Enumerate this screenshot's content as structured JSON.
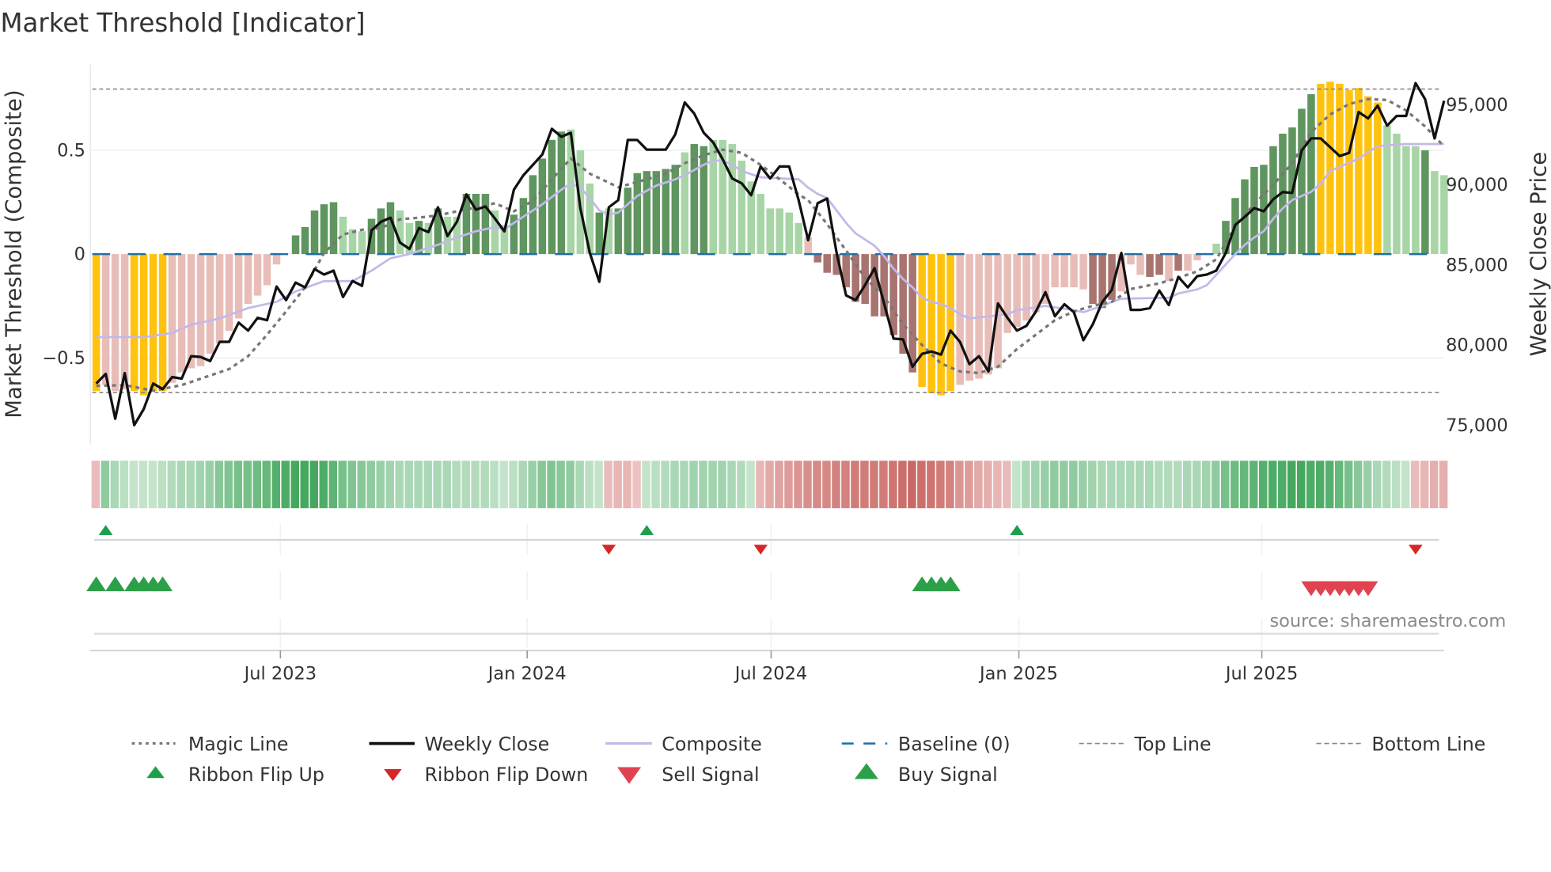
{
  "chart_data": {
    "type": "bar",
    "title": "Market Threshold [Indicator]",
    "ylabel_left": "Market Threshold (Composite)",
    "ylabel_right": "Weekly Close Price",
    "source": "source: sharemaestro.com",
    "ylim_left": [
      -0.95,
      0.92
    ],
    "ylim_right": [
      73500,
      98000
    ],
    "left_ticks": [
      {
        "v": 0.5,
        "label": "0.5"
      },
      {
        "v": 0,
        "label": "0"
      },
      {
        "v": -0.5,
        "label": "−0.5"
      }
    ],
    "right_ticks": [
      {
        "v": 95000,
        "label": "95,000"
      },
      {
        "v": 90000,
        "label": "90,000"
      },
      {
        "v": 85000,
        "label": "85,000"
      },
      {
        "v": 80000,
        "label": "80,000"
      },
      {
        "v": 75000,
        "label": "75,000"
      }
    ],
    "x_ticks": [
      {
        "i": 19.4,
        "label": "Jul 2023"
      },
      {
        "i": 45.4,
        "label": "Jan 2024"
      },
      {
        "i": 71.1,
        "label": "Jul 2024"
      },
      {
        "i": 97.2,
        "label": "Jan 2025"
      },
      {
        "i": 122.8,
        "label": "Jul 2025"
      }
    ],
    "top_line": 0.795,
    "bottom_line": -0.667,
    "baseline": 0,
    "bar_colors": {
      "Y": "#FFC20E",
      "P": "#E8BDB8",
      "B": "#A87470",
      "G": "#5F955F",
      "L": "#A8D5A6"
    },
    "composite_bars": [
      -0.66,
      -0.63,
      -0.66,
      -0.65,
      -0.66,
      -0.68,
      -0.66,
      -0.66,
      -0.62,
      -0.57,
      -0.55,
      -0.54,
      -0.48,
      -0.43,
      -0.37,
      -0.31,
      -0.24,
      -0.2,
      -0.15,
      -0.05,
      0.003,
      0.09,
      0.13,
      0.21,
      0.24,
      0.25,
      0.18,
      0.12,
      0.11,
      0.17,
      0.22,
      0.25,
      0.21,
      0.15,
      0.16,
      0.15,
      0.22,
      0.18,
      0.18,
      0.29,
      0.29,
      0.29,
      0.21,
      0.14,
      0.19,
      0.27,
      0.38,
      0.46,
      0.55,
      0.59,
      0.6,
      0.5,
      0.34,
      0.2,
      0.22,
      0.22,
      0.32,
      0.39,
      0.4,
      0.4,
      0.41,
      0.43,
      0.49,
      0.53,
      0.52,
      0.55,
      0.55,
      0.53,
      0.45,
      0.35,
      0.29,
      0.22,
      0.22,
      0.2,
      0.15,
      0.08,
      -0.04,
      -0.09,
      -0.1,
      -0.16,
      -0.23,
      -0.24,
      -0.3,
      -0.3,
      -0.39,
      -0.48,
      -0.57,
      -0.64,
      -0.67,
      -0.68,
      -0.66,
      -0.63,
      -0.61,
      -0.6,
      -0.58,
      -0.55,
      -0.38,
      -0.35,
      -0.32,
      -0.28,
      -0.24,
      -0.16,
      -0.16,
      -0.16,
      -0.17,
      -0.24,
      -0.26,
      -0.22,
      -0.18,
      -0.05,
      -0.1,
      -0.11,
      -0.1,
      -0.13,
      -0.08,
      -0.08,
      -0.03,
      0.004,
      0.05,
      0.16,
      0.27,
      0.36,
      0.42,
      0.43,
      0.52,
      0.58,
      0.61,
      0.7,
      0.77,
      0.82,
      0.83,
      0.82,
      0.79,
      0.8,
      0.76,
      0.73,
      0.62,
      0.58,
      0.52,
      0.52,
      0.5,
      0.4,
      0.38
    ],
    "bar_states": "YPPPYYYYPPPPPPPPPPPPLGGGGGLLLGGGLLGLGLLGGGLLGGGGGGLLLGLGGGGGGGLGGLLLLLLLLLLPBBBBBBBBBBBYYYYPPPPPPPPPPPPPPBBBPPPBBPBPPPLGGGGGGGGGGYYYYYYYLLLLGLL",
    "weekly_close": [
      77600,
      78200,
      75400,
      78250,
      75000,
      76000,
      77600,
      77250,
      78000,
      77900,
      79300,
      79250,
      79000,
      80200,
      80200,
      81400,
      80900,
      81700,
      81550,
      83650,
      82800,
      83900,
      83600,
      84750,
      84400,
      84650,
      83000,
      84000,
      83700,
      87150,
      87700,
      87950,
      86400,
      86000,
      87300,
      87050,
      88600,
      86800,
      87700,
      89400,
      88450,
      88650,
      87900,
      87100,
      89700,
      90600,
      91250,
      91900,
      93500,
      93000,
      93250,
      88550,
      85750,
      83950,
      88600,
      89050,
      92800,
      92800,
      92200,
      92200,
      92200,
      93150,
      95150,
      94450,
      93250,
      92650,
      91600,
      90400,
      90100,
      89350,
      91150,
      90400,
      91150,
      91150,
      89050,
      86550,
      88850,
      89150,
      85750,
      83100,
      82800,
      83750,
      84800,
      82600,
      80400,
      80350,
      78650,
      79450,
      79600,
      79400,
      80900,
      80200,
      78800,
      79300,
      78350,
      82600,
      81700,
      80900,
      81200,
      82100,
      83300,
      81800,
      82550,
      82050,
      80300,
      81300,
      82700,
      83450,
      85750,
      82200,
      82200,
      82300,
      83400,
      82500,
      84250,
      83600,
      84300,
      84400,
      84650,
      85750,
      87500,
      88000,
      88550,
      88350,
      89100,
      89550,
      89500,
      92150,
      92900,
      92900,
      92350,
      91800,
      92000,
      94550,
      94150,
      94950,
      93700,
      94300,
      94300,
      96350,
      95350,
      92900,
      95250
    ],
    "composite_line": [
      [
        0,
        -0.4
      ],
      [
        5,
        -0.4
      ],
      [
        8,
        -0.38
      ],
      [
        10,
        -0.34
      ],
      [
        13,
        -0.31
      ],
      [
        16,
        -0.26
      ],
      [
        19,
        -0.23
      ],
      [
        21,
        -0.18
      ],
      [
        24,
        -0.13
      ],
      [
        27,
        -0.13
      ],
      [
        29,
        -0.08
      ],
      [
        31,
        -0.02
      ],
      [
        33,
        0.0
      ],
      [
        36,
        0.045
      ],
      [
        38,
        0.08
      ],
      [
        40,
        0.11
      ],
      [
        42,
        0.13
      ],
      [
        43,
        0.12
      ],
      [
        45,
        0.18
      ],
      [
        47,
        0.24
      ],
      [
        49,
        0.31
      ],
      [
        50,
        0.34
      ],
      [
        51,
        0.32
      ],
      [
        52,
        0.27
      ],
      [
        53,
        0.21
      ],
      [
        54,
        0.19
      ],
      [
        55,
        0.2
      ],
      [
        56,
        0.24
      ],
      [
        57,
        0.28
      ],
      [
        59,
        0.33
      ],
      [
        61,
        0.36
      ],
      [
        62,
        0.38
      ],
      [
        64,
        0.43
      ],
      [
        65,
        0.45
      ],
      [
        66,
        0.45
      ],
      [
        67,
        0.43
      ],
      [
        68,
        0.4
      ],
      [
        70,
        0.37
      ],
      [
        74,
        0.36
      ],
      [
        75,
        0.32
      ],
      [
        76,
        0.29
      ],
      [
        77,
        0.27
      ],
      [
        78,
        0.21
      ],
      [
        79,
        0.15
      ],
      [
        80,
        0.1
      ],
      [
        81,
        0.07
      ],
      [
        82,
        0.04
      ],
      [
        83,
        -0.01
      ],
      [
        84,
        -0.07
      ],
      [
        85,
        -0.12
      ],
      [
        86,
        -0.16
      ],
      [
        87,
        -0.21
      ],
      [
        88,
        -0.23
      ],
      [
        89,
        -0.24
      ],
      [
        90,
        -0.26
      ],
      [
        91,
        -0.29
      ],
      [
        92,
        -0.31
      ],
      [
        94,
        -0.3
      ],
      [
        96,
        -0.29
      ],
      [
        97,
        -0.27
      ],
      [
        100,
        -0.25
      ],
      [
        103,
        -0.27
      ],
      [
        104,
        -0.28
      ],
      [
        106,
        -0.25
      ],
      [
        107,
        -0.23
      ],
      [
        108,
        -0.215
      ],
      [
        113,
        -0.21
      ],
      [
        114,
        -0.19
      ],
      [
        116,
        -0.17
      ],
      [
        117,
        -0.15
      ],
      [
        118,
        -0.1
      ],
      [
        119,
        -0.05
      ],
      [
        120,
        0.0
      ],
      [
        121,
        0.045
      ],
      [
        122,
        0.08
      ],
      [
        123,
        0.11
      ],
      [
        124,
        0.17
      ],
      [
        125,
        0.22
      ],
      [
        126,
        0.26
      ],
      [
        127,
        0.28
      ],
      [
        128,
        0.3
      ],
      [
        129,
        0.34
      ],
      [
        130,
        0.4
      ],
      [
        131,
        0.42
      ],
      [
        132,
        0.44
      ],
      [
        133,
        0.46
      ],
      [
        134,
        0.49
      ],
      [
        135,
        0.52
      ],
      [
        138,
        0.53
      ],
      [
        142,
        0.53
      ]
    ],
    "magic_line": [
      [
        0,
        77450
      ],
      [
        3,
        77500
      ],
      [
        6,
        77150
      ],
      [
        9,
        77500
      ],
      [
        12,
        78100
      ],
      [
        14,
        78500
      ],
      [
        16,
        79300
      ],
      [
        18,
        80650
      ],
      [
        20,
        82100
      ],
      [
        22,
        83600
      ],
      [
        24,
        85750
      ],
      [
        26,
        86900
      ],
      [
        28,
        87200
      ],
      [
        30,
        87300
      ],
      [
        32,
        87850
      ],
      [
        34,
        87950
      ],
      [
        36,
        88100
      ],
      [
        40,
        88600
      ],
      [
        42,
        88850
      ],
      [
        44,
        88350
      ],
      [
        46,
        89000
      ],
      [
        48,
        90350
      ],
      [
        50,
        91650
      ],
      [
        52,
        90700
      ],
      [
        55,
        89850
      ],
      [
        58,
        90350
      ],
      [
        60,
        90700
      ],
      [
        62,
        91350
      ],
      [
        64,
        91850
      ],
      [
        66,
        92200
      ],
      [
        68,
        92000
      ],
      [
        70,
        91250
      ],
      [
        72,
        90350
      ],
      [
        74,
        89400
      ],
      [
        75,
        89050
      ],
      [
        77,
        87550
      ],
      [
        79,
        85900
      ],
      [
        81,
        84200
      ],
      [
        83,
        83000
      ],
      [
        85,
        81300
      ],
      [
        87,
        80000
      ],
      [
        89,
        78850
      ],
      [
        91,
        78350
      ],
      [
        93,
        78250
      ],
      [
        95,
        78650
      ],
      [
        97,
        79750
      ],
      [
        99,
        80650
      ],
      [
        101,
        81550
      ],
      [
        103,
        82100
      ],
      [
        105,
        82450
      ],
      [
        107,
        82700
      ],
      [
        109,
        83500
      ],
      [
        112,
        83850
      ],
      [
        114,
        84200
      ],
      [
        116,
        84600
      ],
      [
        118,
        85350
      ],
      [
        120,
        87400
      ],
      [
        122,
        88800
      ],
      [
        124,
        90000
      ],
      [
        126,
        91350
      ],
      [
        128,
        93300
      ],
      [
        130,
        94400
      ],
      [
        132,
        95050
      ],
      [
        134,
        95350
      ],
      [
        136,
        95300
      ],
      [
        138,
        94650
      ],
      [
        140,
        93650
      ],
      [
        142,
        92400
      ]
    ],
    "ribbon": [
      -0.2,
      0.45,
      0.3,
      0.2,
      0.15,
      0.15,
      0.15,
      0.2,
      0.25,
      0.3,
      0.3,
      0.35,
      0.4,
      0.5,
      0.55,
      0.6,
      0.6,
      0.65,
      0.7,
      0.8,
      0.85,
      0.9,
      0.9,
      0.9,
      0.85,
      0.75,
      0.6,
      0.55,
      0.5,
      0.45,
      0.4,
      0.35,
      0.3,
      0.3,
      0.3,
      0.3,
      0.3,
      0.3,
      0.25,
      0.25,
      0.25,
      0.25,
      0.2,
      0.15,
      0.2,
      0.3,
      0.4,
      0.5,
      0.55,
      0.5,
      0.45,
      0.3,
      0.2,
      0.15,
      -0.2,
      -0.25,
      -0.25,
      -0.15,
      0.15,
      0.2,
      0.25,
      0.3,
      0.3,
      0.35,
      0.35,
      0.35,
      0.35,
      0.3,
      0.25,
      0.15,
      -0.25,
      -0.35,
      -0.4,
      -0.45,
      -0.5,
      -0.55,
      -0.6,
      -0.6,
      -0.65,
      -0.65,
      -0.7,
      -0.7,
      -0.7,
      -0.7,
      -0.75,
      -0.8,
      -0.85,
      -0.8,
      -0.75,
      -0.7,
      -0.65,
      -0.5,
      -0.45,
      -0.35,
      -0.3,
      -0.25,
      -0.2,
      0.15,
      0.3,
      0.35,
      0.4,
      0.45,
      0.45,
      0.45,
      0.4,
      0.35,
      0.3,
      0.3,
      0.3,
      0.3,
      0.3,
      0.3,
      0.25,
      0.25,
      0.25,
      0.3,
      0.3,
      0.35,
      0.45,
      0.6,
      0.65,
      0.7,
      0.75,
      0.8,
      0.85,
      0.85,
      0.9,
      0.9,
      0.85,
      0.85,
      0.8,
      0.7,
      0.6,
      0.5,
      0.4,
      0.3,
      0.25,
      0.2,
      0.15,
      -0.2,
      -0.25,
      -0.3,
      -0.3
    ],
    "ribbon_flip_up": [
      1,
      58,
      97
    ],
    "ribbon_flip_down": [
      54,
      70,
      139
    ],
    "buy_signals": [
      0,
      2,
      4,
      5,
      6,
      7,
      87,
      88,
      89,
      90
    ],
    "sell_signals": [
      128,
      129,
      130,
      131,
      132,
      133,
      134
    ],
    "legend": {
      "row1": [
        "Magic Line",
        "Weekly Close",
        "Composite",
        "Baseline (0)",
        "Top Line",
        "Bottom Line"
      ],
      "row2": [
        "Ribbon Flip Up",
        "Ribbon Flip Down",
        "Sell Signal",
        "Buy Signal"
      ]
    },
    "colors": {
      "close": "#111111",
      "composite": "#C3B8EA",
      "magic": "#777777",
      "baseline": "#1F6FA8",
      "flip_up": "#1E9E4A",
      "flip_down": "#D62728",
      "buy": "#2CA048",
      "sell": "#E0424F"
    }
  }
}
